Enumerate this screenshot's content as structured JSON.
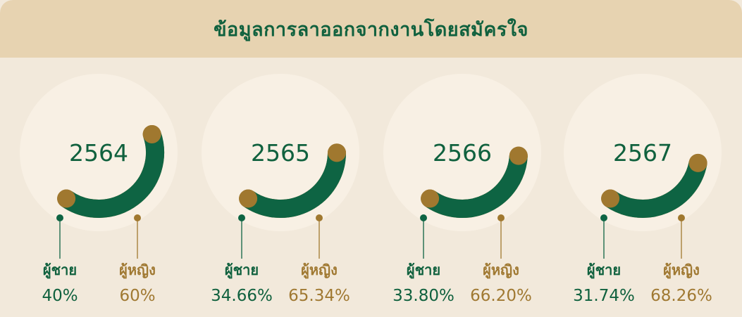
{
  "title": "ข้อมูลการลาออกจากงานโดยสมัครใจ",
  "colors": {
    "male": "#0e6443",
    "female": "#a0782f",
    "halo": "#f8f0e4",
    "title_bg": "#e7d3b1",
    "panel_bg": "#f2e9db"
  },
  "legend": {
    "male": "ผู้ชาย",
    "female": "ผู้หญิง"
  },
  "chart_data": [
    {
      "type": "pie",
      "title": "2564",
      "categories": [
        "ผู้ชาย",
        "ผู้หญิง"
      ],
      "values": [
        40,
        60
      ],
      "labels": [
        "40%",
        "60%"
      ]
    },
    {
      "type": "pie",
      "title": "2565",
      "categories": [
        "ผู้ชาย",
        "ผู้หญิง"
      ],
      "values": [
        34.66,
        65.34
      ],
      "labels": [
        "34.66%",
        "65.34%"
      ]
    },
    {
      "type": "pie",
      "title": "2566",
      "categories": [
        "ผู้ชาย",
        "ผู้หญิง"
      ],
      "values": [
        33.8,
        66.2
      ],
      "labels": [
        "33.80%",
        "66.20%"
      ]
    },
    {
      "type": "pie",
      "title": "2567",
      "categories": [
        "ผู้ชาย",
        "ผู้หญิง"
      ],
      "values": [
        31.74,
        68.26
      ],
      "labels": [
        "31.74%",
        "68.26%"
      ]
    }
  ]
}
